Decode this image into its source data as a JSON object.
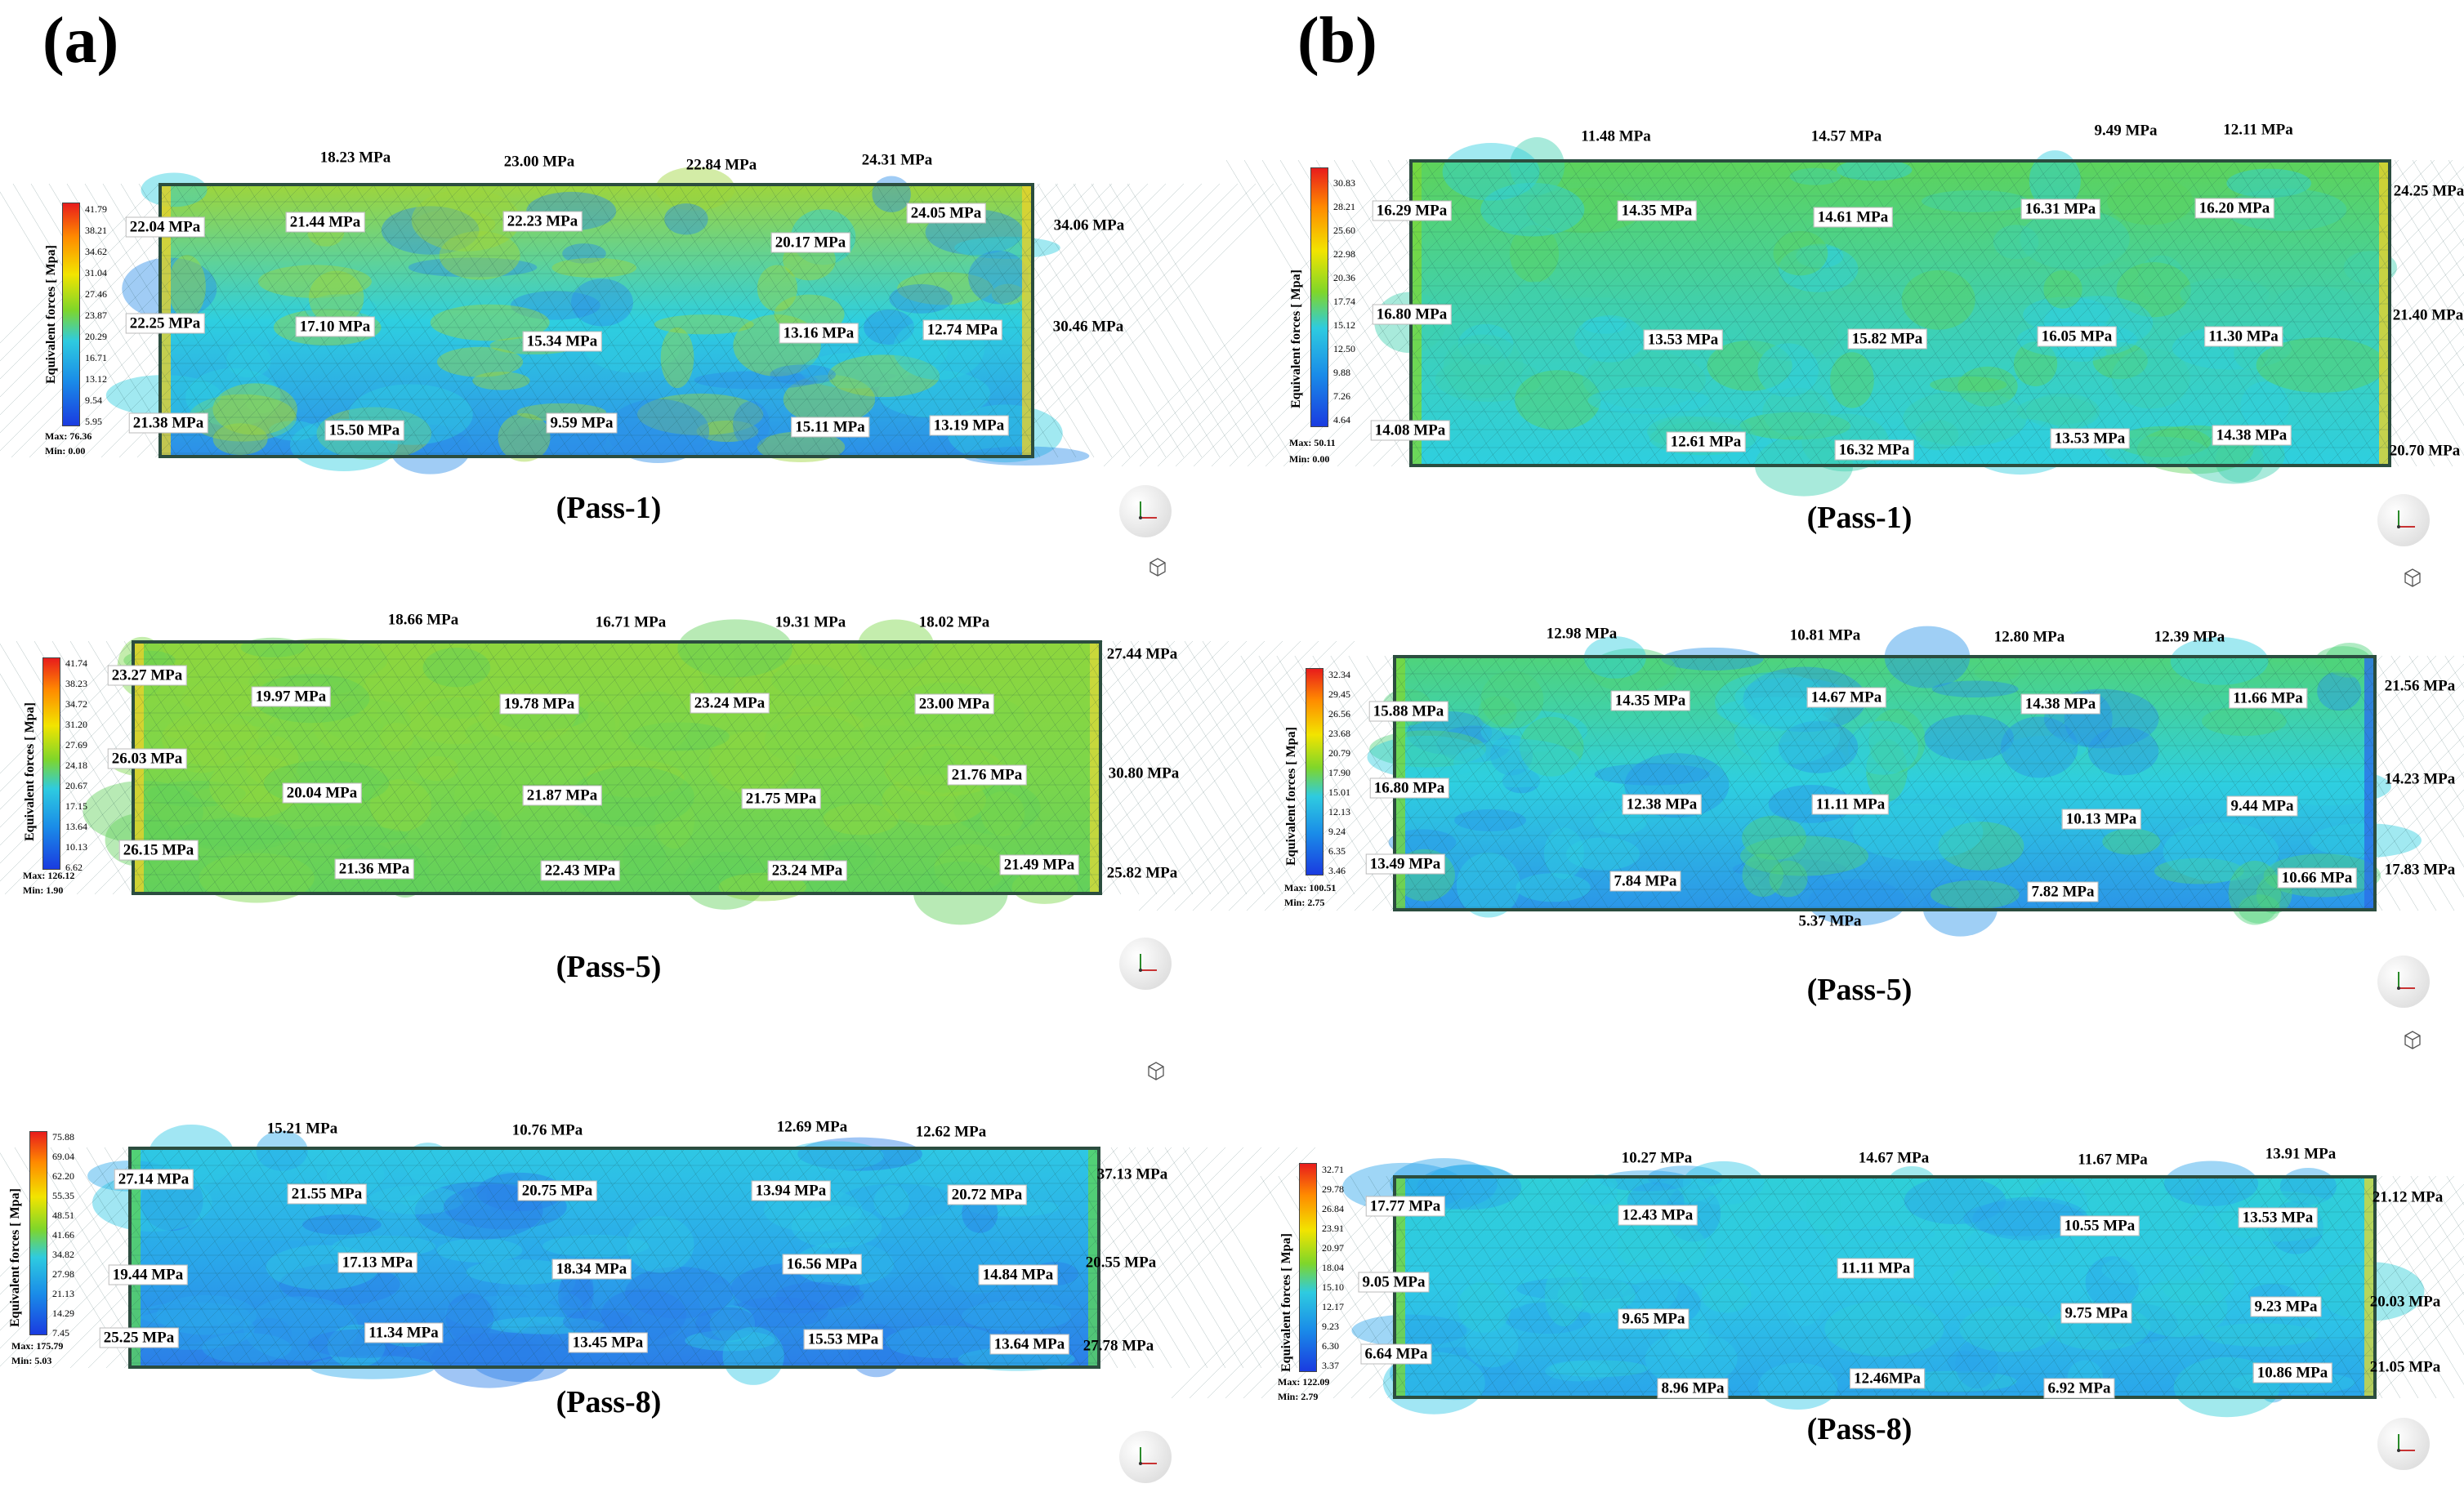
{
  "legend_title": "Equivalent forces [ Mpa]",
  "colors": {
    "min": "#1a3be0",
    "max": "#e81c1c"
  },
  "columns": [
    {
      "label": "(a)",
      "panels": [
        {
          "pass": "(Pass-1)",
          "legend_ticks": [
            "41.79",
            "38.21",
            "34.62",
            "31.04",
            "27.46",
            "23.87",
            "20.29",
            "16.71",
            "13.12",
            "9.54",
            "5.95"
          ],
          "max": "Max: 76.36",
          "min": "Min: 0.00",
          "top_labels": [
            "18.23 MPa",
            "23.00 MPa",
            "22.84 MPa",
            "24.31 MPa"
          ],
          "left_labels": [
            "22.04 MPa",
            "22.25 MPa",
            "21.38 MPa"
          ],
          "right_labels": [
            "34.06 MPa",
            "30.46 MPa"
          ],
          "row1": [
            "21.44 MPa",
            "22.23 MPa",
            "20.17 MPa",
            "24.05 MPa"
          ],
          "row2": [
            "17.10 MPa",
            "15.34 MPa",
            "13.16 MPa",
            "12.74 MPa"
          ],
          "row3": [
            "15.50 MPa",
            "9.59 MPa",
            "15.11 MPa",
            "13.19 MPa"
          ]
        },
        {
          "pass": "(Pass-5)",
          "legend_ticks": [
            "41.74",
            "38.23",
            "34.72",
            "31.20",
            "27.69",
            "24.18",
            "20.67",
            "17.15",
            "13.64",
            "10.13",
            "6.62"
          ],
          "max": "Max: 126.12",
          "min": "Min: 1.90",
          "top_labels": [
            "18.66 MPa",
            "16.71 MPa",
            "19.31 MPa",
            "18.02 MPa"
          ],
          "left_labels": [
            "23.27 MPa",
            "26.03 MPa",
            "26.15 MPa"
          ],
          "right_labels": [
            "27.44 MPa",
            "30.80 MPa",
            "25.82 MPa"
          ],
          "row1": [
            "19.97 MPa",
            "19.78 MPa",
            "23.24 MPa",
            "23.00 MPa"
          ],
          "row2": [
            "20.04 MPa",
            "21.87 MPa",
            "21.75 MPa",
            "21.76 MPa"
          ],
          "row3": [
            "21.36 MPa",
            "22.43 MPa",
            "23.24 MPa",
            "21.49 MPa"
          ]
        },
        {
          "pass": "(Pass-8)",
          "legend_ticks": [
            "75.88",
            "69.04",
            "62.20",
            "55.35",
            "48.51",
            "41.66",
            "34.82",
            "27.98",
            "21.13",
            "14.29",
            "7.45"
          ],
          "max": "Max: 175.79",
          "min": "Min: 5.03",
          "top_labels": [
            "15.21 MPa",
            "10.76 MPa",
            "12.69 MPa",
            "12.62 MPa"
          ],
          "left_labels": [
            "27.14 MPa",
            "19.44 MPa",
            "25.25 MPa"
          ],
          "right_labels": [
            "37.13 MPa",
            "20.55 MPa",
            "27.78 MPa"
          ],
          "row1": [
            "21.55 MPa",
            "20.75 MPa",
            "13.94 MPa",
            "20.72 MPa"
          ],
          "row2": [
            "17.13 MPa",
            "18.34 MPa",
            "16.56 MPa",
            "14.84 MPa"
          ],
          "row3": [
            "11.34 MPa",
            "13.45 MPa",
            "15.53 MPa",
            "13.64 MPa"
          ]
        }
      ]
    },
    {
      "label": "(b)",
      "panels": [
        {
          "pass": "(Pass-1)",
          "legend_ticks": [
            "30.83",
            "28.21",
            "25.60",
            "22.98",
            "20.36",
            "17.74",
            "15.12",
            "12.50",
            "9.88",
            "7.26",
            "4.64"
          ],
          "max": "Max: 50.11",
          "min": "Min: 0.00",
          "top_labels": [
            "11.48 MPa",
            "14.57 MPa",
            "9.49 MPa",
            "12.11 MPa"
          ],
          "left_labels": [
            "16.29 MPa",
            "16.80 MPa",
            "14.08 MPa"
          ],
          "right_labels": [
            "24.25 MPa",
            "21.40 MPa",
            "20.70 MPa"
          ],
          "row1": [
            "14.35 MPa",
            "14.61 MPa",
            "16.31 MPa",
            "16.20 MPa"
          ],
          "row2": [
            "13.53 MPa",
            "15.82 MPa",
            "16.05 MPa",
            "11.30 MPa"
          ],
          "row3": [
            "12.61 MPa",
            "16.32 MPa",
            "13.53 MPa",
            "14.38 MPa"
          ]
        },
        {
          "pass": "(Pass-5)",
          "legend_ticks": [
            "32.34",
            "29.45",
            "26.56",
            "23.68",
            "20.79",
            "17.90",
            "15.01",
            "12.13",
            "9.24",
            "6.35",
            "3.46"
          ],
          "max": "Max: 100.51",
          "min": "Min: 2.75",
          "top_labels": [
            "12.98 MPa",
            "10.81 MPa",
            "12.80 MPa",
            "12.39 MPa"
          ],
          "left_labels": [
            "15.88 MPa",
            "16.80 MPa",
            "13.49 MPa"
          ],
          "right_labels": [
            "21.56 MPa",
            "14.23 MPa",
            "17.83 MPa"
          ],
          "row1": [
            "14.35 MPa",
            "14.67 MPa",
            "14.38 MPa",
            "11.66 MPa"
          ],
          "row2": [
            "12.38 MPa",
            "11.11 MPa",
            "10.13 MPa",
            "9.44 MPa"
          ],
          "row3": [
            "7.84 MPa",
            "7.82 MPa",
            "10.66 MPa"
          ],
          "bottom_label": "5.37 MPa"
        },
        {
          "pass": "(Pass-8)",
          "legend_ticks": [
            "32.71",
            "29.78",
            "26.84",
            "23.91",
            "20.97",
            "18.04",
            "15.10",
            "12.17",
            "9.23",
            "6.30",
            "3.37"
          ],
          "max": "Max: 122.09",
          "min": "Min: 2.79",
          "top_labels": [
            "10.27 MPa",
            "14.67 MPa",
            "11.67 MPa",
            "13.91 MPa"
          ],
          "left_labels": [
            "17.77 MPa",
            "9.05 MPa",
            "6.64 MPa"
          ],
          "right_labels": [
            "21.12 MPa",
            "20.03 MPa",
            "21.05 MPa"
          ],
          "row1": [
            "12.43 MPa",
            "10.55 MPa",
            "13.53 MPa"
          ],
          "row2": [
            "11.11 MPa"
          ],
          "row3": [
            "9.65 MPa",
            "9.75 MPa",
            "9.23 MPa"
          ],
          "row4": [
            "8.96 MPa",
            "12.46MPa",
            "6.92 MPa",
            "10.86 MPa"
          ]
        }
      ]
    }
  ]
}
